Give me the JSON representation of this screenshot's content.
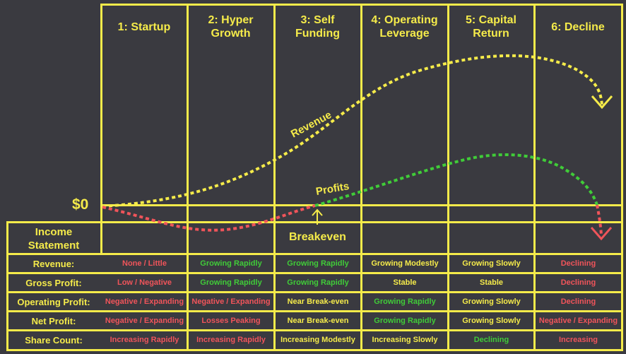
{
  "stages": [
    "1: Startup",
    "2: Hyper Growth",
    "3: Self Funding",
    "4: Operating Leverage",
    "5: Capital Return",
    "6: Decline"
  ],
  "zero_label": "$0",
  "curve_labels": {
    "revenue": "Revenue",
    "profits": "Profits",
    "breakeven": "Breakeven"
  },
  "table": {
    "header": "Income Statement",
    "rows": [
      {
        "label": "Revenue:",
        "cells": [
          {
            "text": "None / Little",
            "tone": "r"
          },
          {
            "text": "Growing Rapidly",
            "tone": "g"
          },
          {
            "text": "Growing Rapidly",
            "tone": "g"
          },
          {
            "text": "Growing Modestly",
            "tone": "y"
          },
          {
            "text": "Growing Slowly",
            "tone": "y"
          },
          {
            "text": "Declining",
            "tone": "r"
          }
        ]
      },
      {
        "label": "Gross Profit:",
        "cells": [
          {
            "text": "Low / Negative",
            "tone": "r"
          },
          {
            "text": "Growing Rapidly",
            "tone": "g"
          },
          {
            "text": "Growing Rapidly",
            "tone": "g"
          },
          {
            "text": "Stable",
            "tone": "y"
          },
          {
            "text": "Stable",
            "tone": "y"
          },
          {
            "text": "Declining",
            "tone": "r"
          }
        ]
      },
      {
        "label": "Operating Profit:",
        "cells": [
          {
            "text": "Negative / Expanding",
            "tone": "r"
          },
          {
            "text": "Negative / Expanding",
            "tone": "r"
          },
          {
            "text": "Near Break-even",
            "tone": "y"
          },
          {
            "text": "Growing Rapidly",
            "tone": "g"
          },
          {
            "text": "Growing Slowly",
            "tone": "y"
          },
          {
            "text": "Declining",
            "tone": "r"
          }
        ]
      },
      {
        "label": "Net Profit:",
        "cells": [
          {
            "text": "Negative / Expanding",
            "tone": "r"
          },
          {
            "text": "Losses Peaking",
            "tone": "r"
          },
          {
            "text": "Near Break-even",
            "tone": "y"
          },
          {
            "text": "Growing Rapidly",
            "tone": "g"
          },
          {
            "text": "Growing Slowly",
            "tone": "y"
          },
          {
            "text": "Negative / Expanding",
            "tone": "r"
          }
        ]
      },
      {
        "label": "Share Count:",
        "cells": [
          {
            "text": "Increasing Rapidly",
            "tone": "r"
          },
          {
            "text": "Increasing Rapidly",
            "tone": "r"
          },
          {
            "text": "Increasing Modestly",
            "tone": "y"
          },
          {
            "text": "Increasing Slowly",
            "tone": "y"
          },
          {
            "text": "Declining",
            "tone": "g"
          },
          {
            "text": "Increasing",
            "tone": "r"
          }
        ]
      }
    ]
  },
  "colors": {
    "background": "#3a3a40",
    "grid": "#f5eb4a",
    "positive": "#40cc38",
    "negative": "#f0545a",
    "neutral": "#f5eb4a"
  }
}
